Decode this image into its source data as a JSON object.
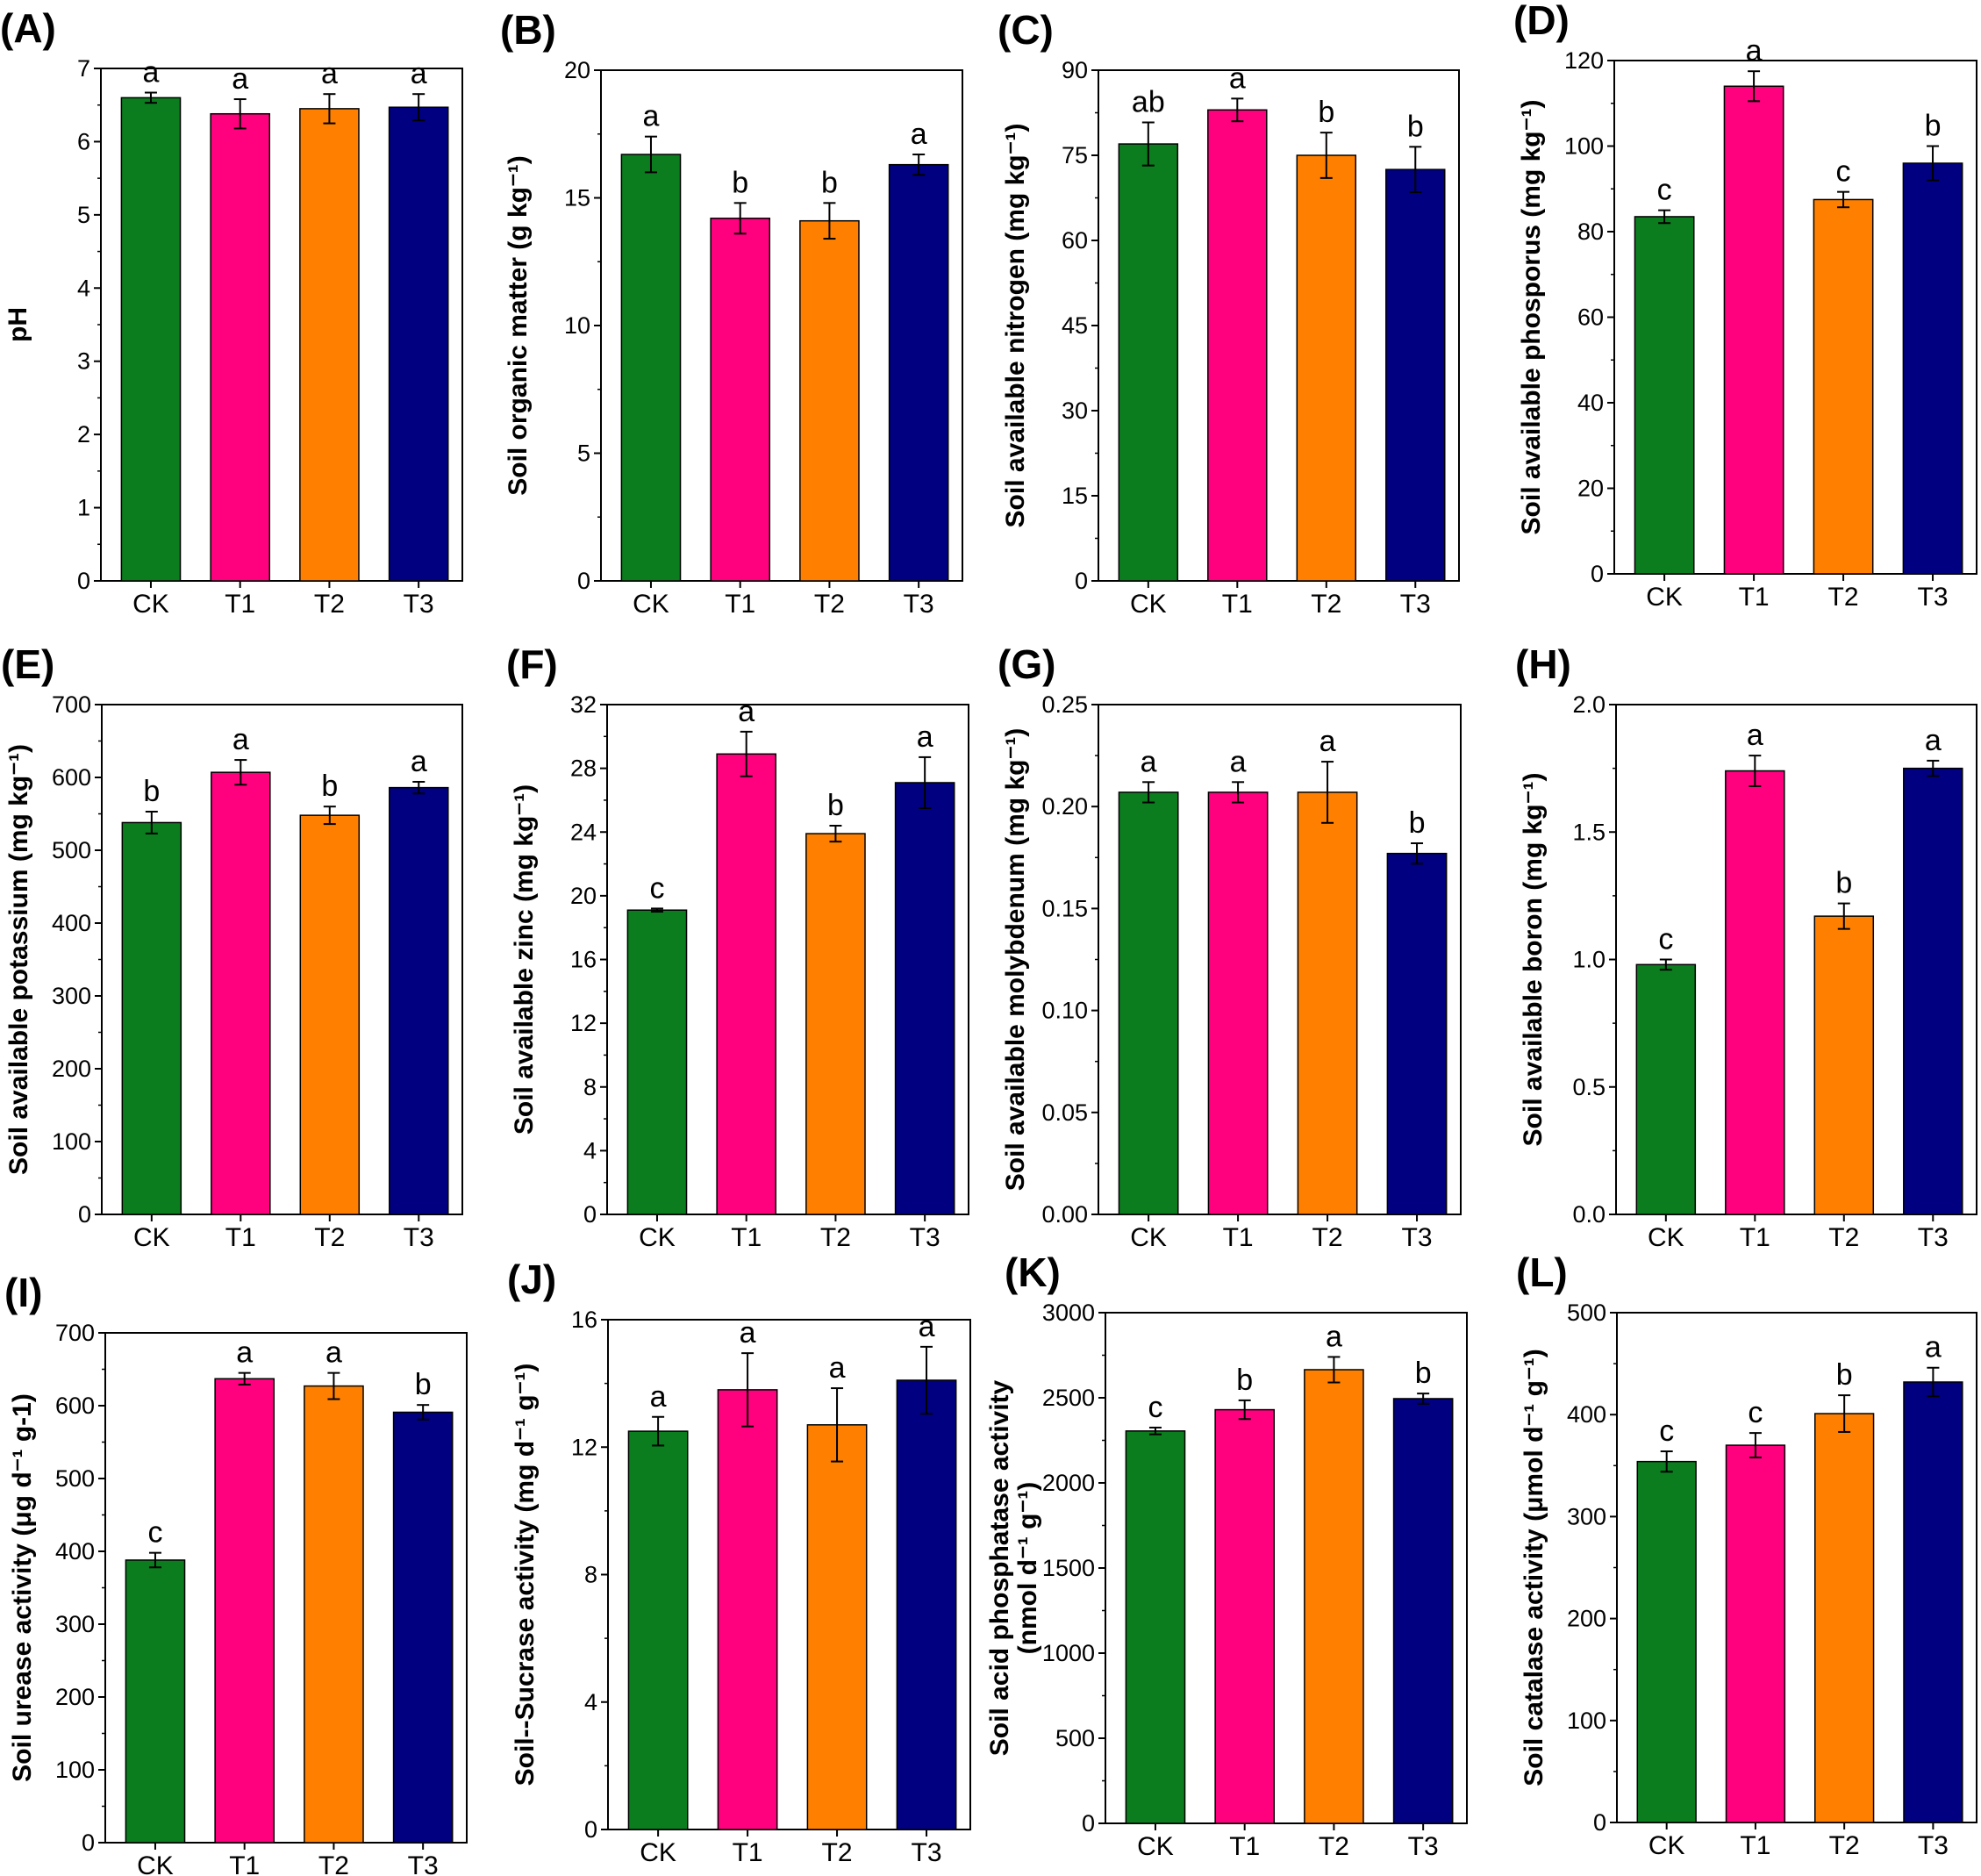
{
  "colors": {
    "CK": "#0b7d1e",
    "T1": "#ff007f",
    "T2": "#ff8000",
    "T3": "#000080",
    "axis": "#000000"
  },
  "chart_data": [
    {
      "id": "A",
      "panel": "(A)",
      "type": "bar",
      "ylabel": "pH",
      "ylabel_lines": [
        "pH"
      ],
      "ylim": [
        0,
        7
      ],
      "yticks": [
        "0",
        "1",
        "2",
        "3",
        "4",
        "5",
        "6",
        "7"
      ],
      "categories": [
        "CK",
        "T1",
        "T2",
        "T3"
      ],
      "values": [
        6.6,
        6.38,
        6.45,
        6.47
      ],
      "errors": [
        0.07,
        0.2,
        0.2,
        0.18
      ],
      "letters": [
        "a",
        "a",
        "a",
        "a"
      ]
    },
    {
      "id": "B",
      "panel": "(B)",
      "type": "bar",
      "ylabel": "Soil organic matter  (g kg-1)",
      "ylabel_lines": [
        "Soil organic matter  (g kg⁻¹)"
      ],
      "ylim": [
        0,
        20
      ],
      "yticks": [
        "0",
        "5",
        "10",
        "15",
        "20"
      ],
      "categories": [
        "CK",
        "T1",
        "T2",
        "T3"
      ],
      "values": [
        16.7,
        14.2,
        14.1,
        16.3
      ],
      "errors": [
        0.7,
        0.6,
        0.7,
        0.4
      ],
      "letters": [
        "a",
        "b",
        "b",
        "a"
      ]
    },
    {
      "id": "C",
      "panel": "(C)",
      "type": "bar",
      "ylabel": "Soil available nitrogen  (mg kg-1)",
      "ylabel_lines": [
        "Soil available nitrogen  (mg kg⁻¹)"
      ],
      "ylim": [
        0,
        90
      ],
      "yticks": [
        "0",
        "15",
        "30",
        "45",
        "60",
        "75",
        "90"
      ],
      "categories": [
        "CK",
        "T1",
        "T2",
        "T3"
      ],
      "values": [
        77,
        83,
        75,
        72.5
      ],
      "errors": [
        3.8,
        2,
        4,
        4
      ],
      "letters": [
        "ab",
        "a",
        "b",
        "b"
      ]
    },
    {
      "id": "D",
      "panel": "(D)",
      "type": "bar",
      "ylabel": "Soil available phosporus  (mg kg-1)",
      "ylabel_lines": [
        "Soil available phosporus  (mg kg⁻¹)"
      ],
      "ylim": [
        0,
        120
      ],
      "yticks": [
        "0",
        "20",
        "40",
        "60",
        "80",
        "100",
        "120"
      ],
      "categories": [
        "CK",
        "T1",
        "T2",
        "T3"
      ],
      "values": [
        83.5,
        114,
        87.5,
        96
      ],
      "errors": [
        1.5,
        3.5,
        1.8,
        4
      ],
      "letters": [
        "c",
        "a",
        "c",
        "b"
      ]
    },
    {
      "id": "E",
      "panel": "(E)",
      "type": "bar",
      "ylabel": "Soil available potassium  (mg kg-1)",
      "ylabel_lines": [
        "Soil available potassium  (mg kg⁻¹)"
      ],
      "ylim": [
        0,
        700
      ],
      "yticks": [
        "0",
        "100",
        "200",
        "300",
        "400",
        "500",
        "600",
        "700"
      ],
      "categories": [
        "CK",
        "T1",
        "T2",
        "T3"
      ],
      "values": [
        538,
        607,
        548,
        586
      ],
      "errors": [
        15,
        17,
        12,
        8
      ],
      "letters": [
        "b",
        "a",
        "b",
        "a"
      ]
    },
    {
      "id": "F",
      "panel": "(F)",
      "type": "bar",
      "ylabel": "Soil available zinc  (mg kg-1)",
      "ylabel_lines": [
        "Soil available zinc  (mg kg⁻¹)"
      ],
      "ylim": [
        0,
        32
      ],
      "yticks": [
        "0",
        "4",
        "8",
        "12",
        "16",
        "20",
        "24",
        "28",
        "32"
      ],
      "categories": [
        "CK",
        "T1",
        "T2",
        "T3"
      ],
      "values": [
        19.1,
        28.9,
        23.9,
        27.1
      ],
      "errors": [
        0.1,
        1.4,
        0.5,
        1.6
      ],
      "letters": [
        "c",
        "a",
        "b",
        "a"
      ]
    },
    {
      "id": "G",
      "panel": "(G)",
      "type": "bar",
      "ylabel": "Soil available molybdenum  (mg kg-1)",
      "ylabel_lines": [
        "Soil available molybdenum  (mg kg⁻¹)"
      ],
      "ylim": [
        0,
        0.25
      ],
      "yticks": [
        "0.00",
        "0.05",
        "0.10",
        "0.15",
        "0.20",
        "0.25"
      ],
      "categories": [
        "CK",
        "T1",
        "T2",
        "T3"
      ],
      "values": [
        0.207,
        0.207,
        0.207,
        0.177
      ],
      "errors": [
        0.005,
        0.005,
        0.015,
        0.005
      ],
      "letters": [
        "a",
        "a",
        "a",
        "b"
      ]
    },
    {
      "id": "H",
      "panel": "(H)",
      "type": "bar",
      "ylabel": "Soil available boron  (mg kg-1)",
      "ylabel_lines": [
        "Soil available boron  (mg kg⁻¹)"
      ],
      "ylim": [
        0,
        2.0
      ],
      "yticks": [
        "0.0",
        "0.5",
        "1.0",
        "1.5",
        "2.0"
      ],
      "categories": [
        "CK",
        "T1",
        "T2",
        "T3"
      ],
      "values": [
        0.98,
        1.74,
        1.17,
        1.75
      ],
      "errors": [
        0.02,
        0.06,
        0.05,
        0.03
      ],
      "letters": [
        "c",
        "a",
        "b",
        "a"
      ]
    },
    {
      "id": "I",
      "panel": "(I)",
      "type": "bar",
      "ylabel": "Soil urease activity (μg d-1 g-1)",
      "ylabel_lines": [
        "Soil urease activity (μg d⁻¹ g-1)"
      ],
      "ylim": [
        0,
        700
      ],
      "yticks": [
        "0",
        "100",
        "200",
        "300",
        "400",
        "500",
        "600",
        "700"
      ],
      "categories": [
        "CK",
        "T1",
        "T2",
        "T3"
      ],
      "values": [
        388,
        637,
        627,
        591
      ],
      "errors": [
        10,
        8,
        18,
        10
      ],
      "letters": [
        "c",
        "a",
        "a",
        "b"
      ]
    },
    {
      "id": "J",
      "panel": "(J)",
      "type": "bar",
      "ylabel": "Soil--Sucrase activity (mg d-1 g-1)",
      "ylabel_lines": [
        "Soil--Sucrase activity (mg d⁻¹ g⁻¹)"
      ],
      "ylim": [
        0,
        16
      ],
      "yticks": [
        "0",
        "4",
        "8",
        "12",
        "16"
      ],
      "categories": [
        "CK",
        "T1",
        "T2",
        "T3"
      ],
      "values": [
        12.5,
        13.8,
        12.7,
        14.1
      ],
      "errors": [
        0.45,
        1.15,
        1.15,
        1.05
      ],
      "letters": [
        "a",
        "a",
        "a",
        "a"
      ]
    },
    {
      "id": "K",
      "panel": "(K)",
      "type": "bar",
      "ylabel": "Soil acid phosphatase activity (nmol d-1 g-1)",
      "ylabel_lines": [
        "Soil acid phosphatase activity",
        "(nmol d⁻¹ g⁻¹)"
      ],
      "ylim": [
        0,
        3000
      ],
      "yticks": [
        "0",
        "500",
        "1000",
        "1500",
        "2000",
        "2500",
        "3000"
      ],
      "categories": [
        "CK",
        "T1",
        "T2",
        "T3"
      ],
      "values": [
        2305,
        2430,
        2665,
        2495
      ],
      "errors": [
        20,
        55,
        75,
        30
      ],
      "letters": [
        "c",
        "b",
        "a",
        "b"
      ]
    },
    {
      "id": "L",
      "panel": "(L)",
      "type": "bar",
      "ylabel": "Soil catalase activity (μmol d-1 g-1)",
      "ylabel_lines": [
        "Soil catalase activity (μmol d⁻¹ g⁻¹)"
      ],
      "ylim": [
        0,
        500
      ],
      "yticks": [
        "0",
        "100",
        "200",
        "300",
        "400",
        "500"
      ],
      "categories": [
        "CK",
        "T1",
        "T2",
        "T3"
      ],
      "values": [
        354,
        370,
        401,
        432
      ],
      "errors": [
        10,
        12,
        18,
        14
      ],
      "letters": [
        "c",
        "c",
        "b",
        "a"
      ]
    }
  ]
}
